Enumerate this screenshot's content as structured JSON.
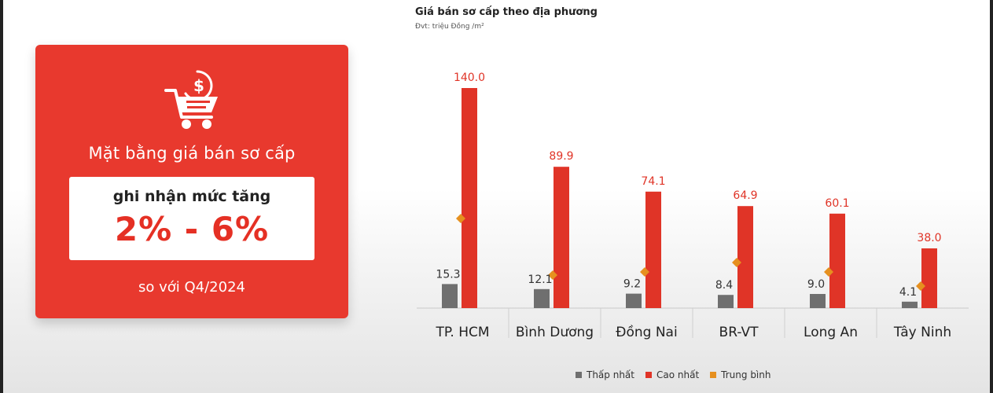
{
  "card": {
    "heading": "Mặt bằng giá bán sơ cấp",
    "box_line1": "ghi nhận mức tăng",
    "box_line2": "2% - 6%",
    "footer": "so với Q4/2024",
    "icon": "shopping-cart-dollar-icon"
  },
  "colors": {
    "accent": "#e8392e",
    "min": "#6f6f6f",
    "max": "#e03427",
    "avg": "#e6901f"
  },
  "chart_data": {
    "type": "bar",
    "title": "Giá bán sơ cấp theo địa phương",
    "unit": "Đvt: triệu Đồng /m²",
    "categories": [
      "TP. HCM",
      "Bình Dương",
      "Đồng Nai",
      "BR-VT",
      "Long An",
      "Tây Ninh"
    ],
    "series": [
      {
        "name": "Thấp nhất",
        "values": [
          15.3,
          12.1,
          9.2,
          8.4,
          9.0,
          4.1
        ],
        "labeled": true
      },
      {
        "name": "Cao nhất",
        "values": [
          140.0,
          89.9,
          74.1,
          64.9,
          60.1,
          38.0
        ],
        "labeled": true
      },
      {
        "name": "Trung bình",
        "values": [
          57,
          21,
          23,
          29,
          23,
          14
        ],
        "marker": "diamond",
        "labeled": false
      }
    ],
    "ylim": [
      0,
      145
    ],
    "legend_position": "bottom"
  }
}
